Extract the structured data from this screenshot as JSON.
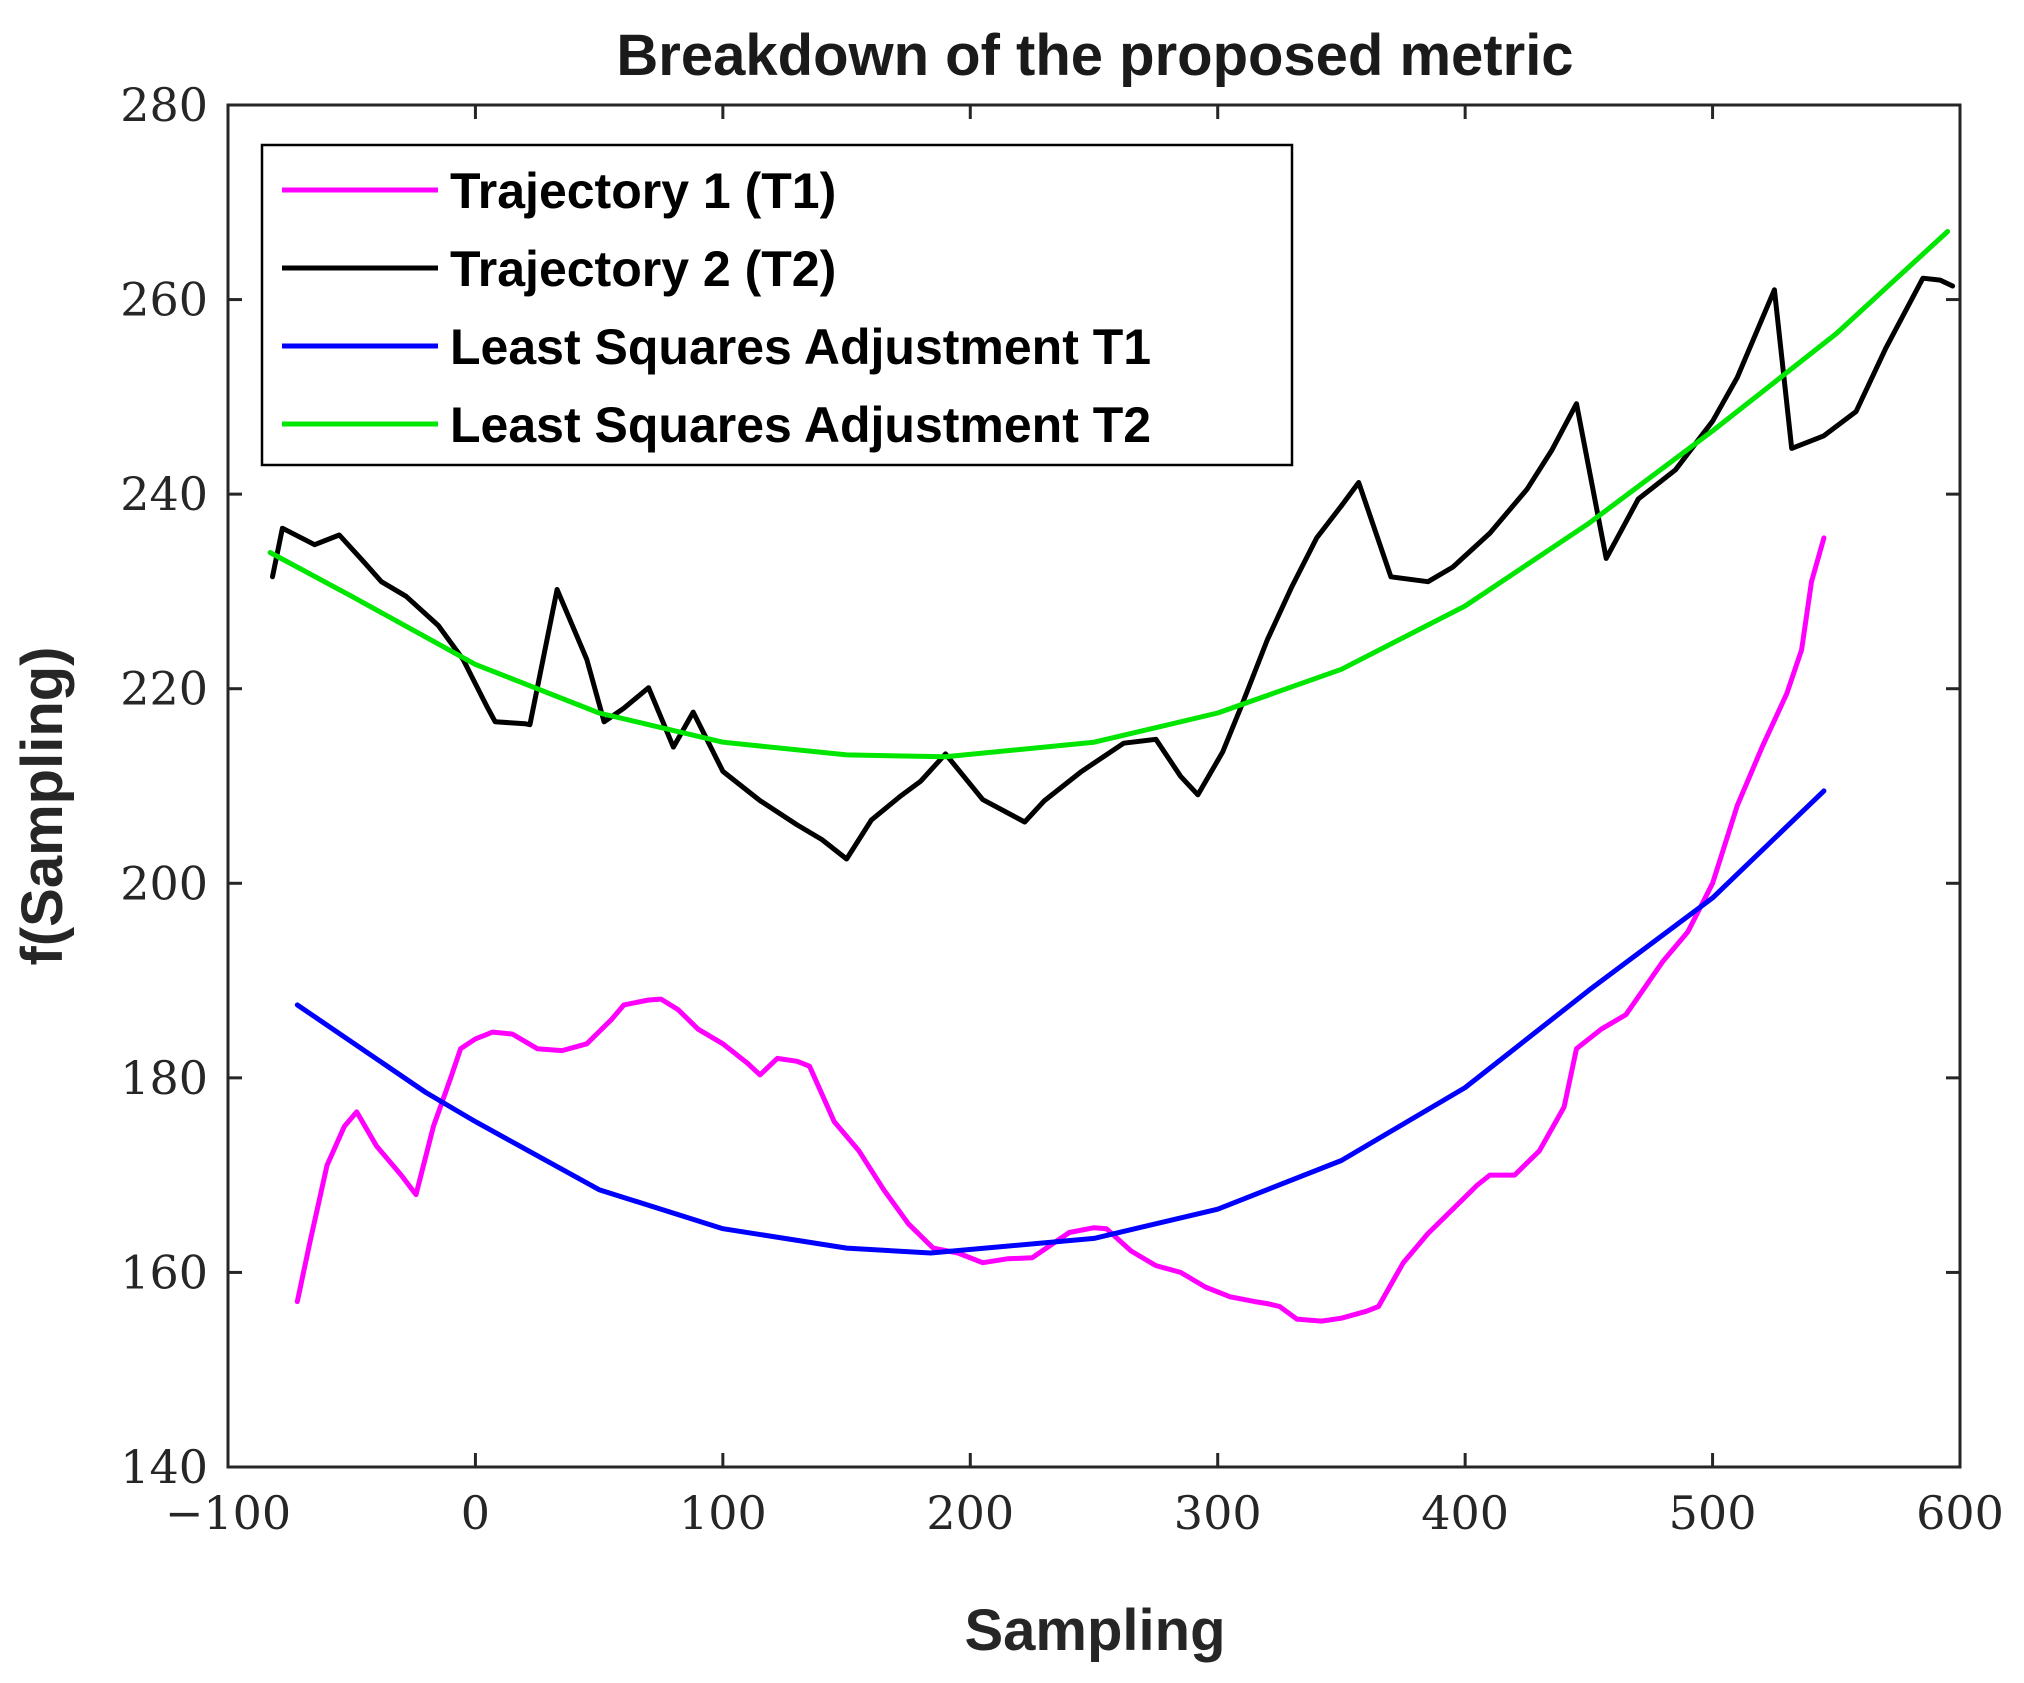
{
  "chart_data": {
    "type": "line",
    "title": "Breakdown of the proposed metric",
    "xlabel": "Sampling",
    "ylabel": "f(Sampling)",
    "xlim": [
      -100,
      600
    ],
    "ylim": [
      140,
      280
    ],
    "xticks": [
      -100,
      0,
      100,
      200,
      300,
      400,
      500,
      600
    ],
    "xtick_labels": [
      "−100",
      "0",
      "100",
      "200",
      "300",
      "400",
      "500",
      "600"
    ],
    "yticks": [
      140,
      160,
      180,
      200,
      220,
      240,
      260,
      280
    ],
    "ytick_labels": [
      "140",
      "160",
      "180",
      "200",
      "220",
      "240",
      "260",
      "280"
    ],
    "grid": false,
    "legend_position": "top-left",
    "series": [
      {
        "name": "Trajectory 1 (T1)",
        "color": "#ff00ff",
        "points": [
          [
            -72,
            157
          ],
          [
            -67,
            163
          ],
          [
            -60,
            171
          ],
          [
            -53,
            175
          ],
          [
            -48,
            176.5
          ],
          [
            -40,
            173
          ],
          [
            -30,
            170
          ],
          [
            -24,
            168
          ],
          [
            -17,
            175
          ],
          [
            -10,
            180
          ],
          [
            -6,
            183
          ],
          [
            0,
            184
          ],
          [
            7,
            184.7
          ],
          [
            15,
            184.5
          ],
          [
            25,
            183
          ],
          [
            35,
            182.8
          ],
          [
            45,
            183.5
          ],
          [
            55,
            186
          ],
          [
            60,
            187.5
          ],
          [
            70,
            188
          ],
          [
            75,
            188.1
          ],
          [
            82,
            187
          ],
          [
            90,
            185
          ],
          [
            100,
            183.5
          ],
          [
            110,
            181.5
          ],
          [
            115,
            180.3
          ],
          [
            122,
            182
          ],
          [
            130,
            181.7
          ],
          [
            135,
            181.2
          ],
          [
            145,
            175.5
          ],
          [
            155,
            172.5
          ],
          [
            165,
            168.5
          ],
          [
            175,
            165
          ],
          [
            185,
            162.5
          ],
          [
            195,
            162
          ],
          [
            205,
            161
          ],
          [
            215,
            161.4
          ],
          [
            225,
            161.5
          ],
          [
            240,
            164.1
          ],
          [
            250,
            164.6
          ],
          [
            255,
            164.5
          ],
          [
            265,
            162.2
          ],
          [
            275,
            160.7
          ],
          [
            285,
            160
          ],
          [
            295,
            158.5
          ],
          [
            305,
            157.5
          ],
          [
            315,
            157
          ],
          [
            320,
            156.8
          ],
          [
            325,
            156.5
          ],
          [
            332,
            155.2
          ],
          [
            342,
            155
          ],
          [
            350,
            155.3
          ],
          [
            360,
            156
          ],
          [
            365,
            156.5
          ],
          [
            375,
            161
          ],
          [
            385,
            164
          ],
          [
            395,
            166.5
          ],
          [
            405,
            169
          ],
          [
            410,
            170
          ],
          [
            420,
            170
          ],
          [
            430,
            172.5
          ],
          [
            440,
            177
          ],
          [
            445,
            183
          ],
          [
            455,
            185
          ],
          [
            465,
            186.5
          ],
          [
            480,
            192
          ],
          [
            490,
            195
          ],
          [
            500,
            200
          ],
          [
            510,
            208
          ],
          [
            520,
            214
          ],
          [
            530,
            219.5
          ],
          [
            536,
            224
          ],
          [
            540,
            231
          ],
          [
            545,
            235.5
          ]
        ]
      },
      {
        "name": "Trajectory 2 (T2)",
        "color": "#000000",
        "points": [
          [
            -82,
            231.5
          ],
          [
            -78,
            236.5
          ],
          [
            -65,
            234.8
          ],
          [
            -55,
            235.8
          ],
          [
            -45,
            233
          ],
          [
            -38,
            231
          ],
          [
            -28,
            229.5
          ],
          [
            -15,
            226.5
          ],
          [
            -5,
            223
          ],
          [
            5,
            218
          ],
          [
            8,
            216.6
          ],
          [
            20,
            216.4
          ],
          [
            22,
            216.3
          ],
          [
            33,
            230.2
          ],
          [
            45,
            223
          ],
          [
            52,
            216.6
          ],
          [
            60,
            218
          ],
          [
            70,
            220.1
          ],
          [
            80,
            214
          ],
          [
            88,
            217.6
          ],
          [
            100,
            211.5
          ],
          [
            115,
            208.5
          ],
          [
            130,
            206
          ],
          [
            140,
            204.5
          ],
          [
            150,
            202.5
          ],
          [
            160,
            206.5
          ],
          [
            172,
            209
          ],
          [
            180,
            210.5
          ],
          [
            190,
            213.3
          ],
          [
            205,
            208.6
          ],
          [
            222,
            206.3
          ],
          [
            230,
            208.5
          ],
          [
            245,
            211.5
          ],
          [
            262,
            214.4
          ],
          [
            275,
            214.8
          ],
          [
            285,
            211
          ],
          [
            292,
            209.1
          ],
          [
            302,
            213.5
          ],
          [
            310,
            218.5
          ],
          [
            320,
            225
          ],
          [
            330,
            230.5
          ],
          [
            340,
            235.5
          ],
          [
            350,
            238.8
          ],
          [
            357,
            241.2
          ],
          [
            370,
            231.5
          ],
          [
            385,
            231
          ],
          [
            395,
            232.5
          ],
          [
            410,
            236
          ],
          [
            425,
            240.5
          ],
          [
            435,
            244.5
          ],
          [
            445,
            249.3
          ],
          [
            457,
            233.4
          ],
          [
            470,
            239.5
          ],
          [
            485,
            242.5
          ],
          [
            500,
            247.5
          ],
          [
            510,
            252
          ],
          [
            525,
            261
          ],
          [
            532,
            244.7
          ],
          [
            545,
            246
          ],
          [
            558,
            248.5
          ],
          [
            570,
            255
          ],
          [
            585,
            262.2
          ],
          [
            592,
            262
          ],
          [
            597,
            261.4
          ]
        ]
      },
      {
        "name": "Least Squares Adjustment T1",
        "color": "#0000ff",
        "fit": "quadratic",
        "x_range": [
          -72,
          545
        ],
        "points": [
          [
            -72,
            187.5
          ],
          [
            -20,
            178.5
          ],
          [
            0,
            175.5
          ],
          [
            50,
            168.5
          ],
          [
            100,
            164.5
          ],
          [
            150,
            162.5
          ],
          [
            184,
            162
          ],
          [
            250,
            163.5
          ],
          [
            300,
            166.5
          ],
          [
            350,
            171.5
          ],
          [
            400,
            179
          ],
          [
            450,
            189
          ],
          [
            500,
            198.5
          ],
          [
            545,
            209.5
          ]
        ]
      },
      {
        "name": "Least Squares Adjustment T2",
        "color": "#00e600",
        "fit": "quadratic",
        "x_range": [
          -83,
          595
        ],
        "points": [
          [
            -83,
            234
          ],
          [
            -50,
            229.5
          ],
          [
            0,
            222.5
          ],
          [
            50,
            217.5
          ],
          [
            100,
            214.5
          ],
          [
            150,
            213.2
          ],
          [
            190,
            213
          ],
          [
            250,
            214.5
          ],
          [
            300,
            217.5
          ],
          [
            350,
            222
          ],
          [
            400,
            228.5
          ],
          [
            450,
            237
          ],
          [
            500,
            246.5
          ],
          [
            550,
            256.5
          ],
          [
            595,
            267
          ]
        ]
      }
    ]
  }
}
